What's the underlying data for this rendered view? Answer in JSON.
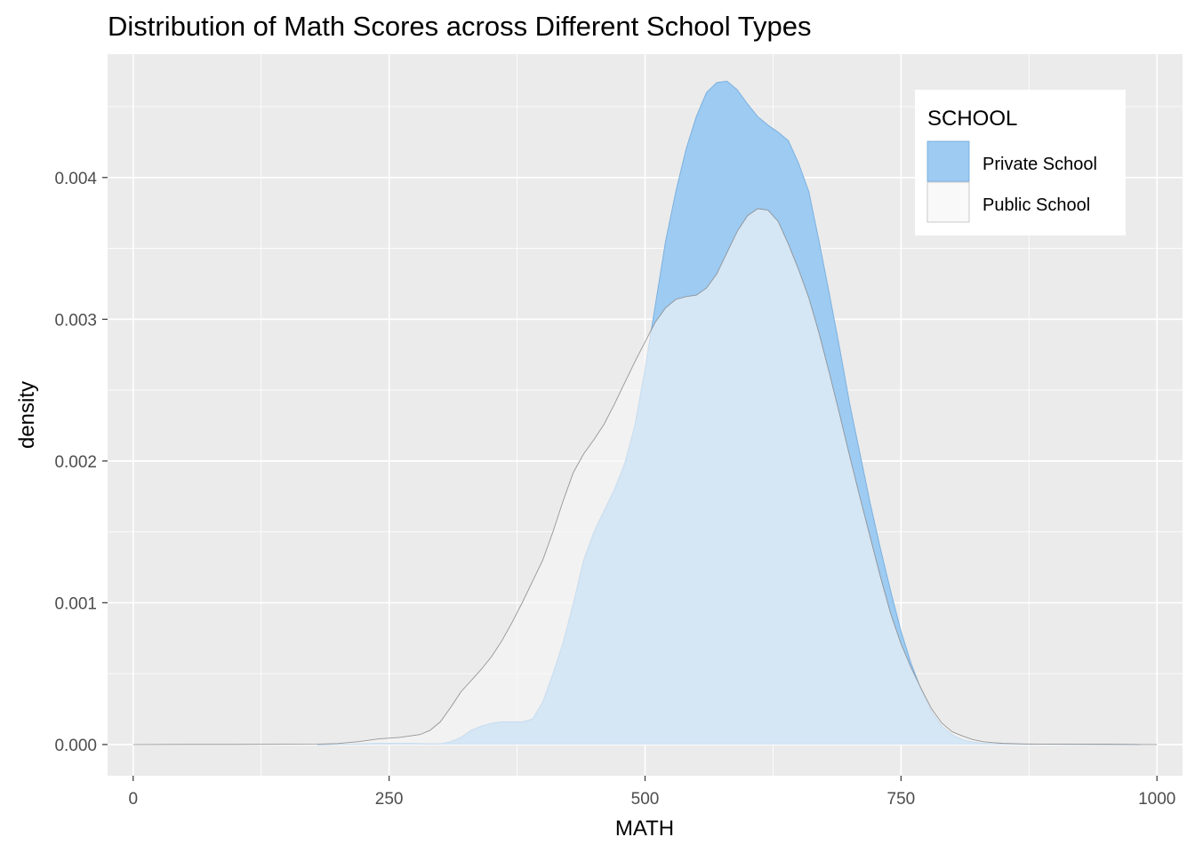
{
  "chart_data": {
    "type": "area",
    "title": "Distribution of Math Scores across Different School Types",
    "xlabel": "MATH",
    "ylabel": "density",
    "xlim": [
      -25,
      1025
    ],
    "ylim": [
      -0.00022,
      0.00487
    ],
    "x_ticks": [
      0,
      250,
      500,
      750,
      1000
    ],
    "x_tick_labels": [
      "0",
      "250",
      "500",
      "750",
      "1000"
    ],
    "y_ticks": [
      0,
      0.001,
      0.002,
      0.003,
      0.004
    ],
    "y_tick_labels": [
      "0.000",
      "0.001",
      "0.002",
      "0.003",
      "0.004"
    ],
    "grid": true,
    "legend": {
      "title": "SCHOOL",
      "position": "top-right",
      "entries": [
        "Private School",
        "Public School"
      ]
    },
    "series": [
      {
        "name": "Private School",
        "color": "#9DCBF2",
        "outline": "#6FA8DC",
        "opacity": 1,
        "points": [
          [
            180,
            0
          ],
          [
            210,
            3e-06
          ],
          [
            240,
            8e-06
          ],
          [
            270,
            8e-06
          ],
          [
            290,
            5e-06
          ],
          [
            300,
            5e-06
          ],
          [
            310,
            2e-05
          ],
          [
            320,
            5e-05
          ],
          [
            330,
            0.0001
          ],
          [
            340,
            0.00013
          ],
          [
            350,
            0.00015
          ],
          [
            360,
            0.00016
          ],
          [
            370,
            0.00016
          ],
          [
            380,
            0.00016
          ],
          [
            390,
            0.00018
          ],
          [
            400,
            0.0003
          ],
          [
            410,
            0.0005
          ],
          [
            420,
            0.00072
          ],
          [
            430,
            0.001
          ],
          [
            440,
            0.0013
          ],
          [
            450,
            0.0015
          ],
          [
            460,
            0.00165
          ],
          [
            470,
            0.0018
          ],
          [
            480,
            0.00198
          ],
          [
            490,
            0.00225
          ],
          [
            500,
            0.00265
          ],
          [
            510,
            0.0031
          ],
          [
            520,
            0.00355
          ],
          [
            530,
            0.0039
          ],
          [
            540,
            0.0042
          ],
          [
            550,
            0.00443
          ],
          [
            560,
            0.0046
          ],
          [
            570,
            0.00467
          ],
          [
            580,
            0.00468
          ],
          [
            590,
            0.00462
          ],
          [
            600,
            0.00452
          ],
          [
            610,
            0.00443
          ],
          [
            620,
            0.00437
          ],
          [
            630,
            0.00432
          ],
          [
            640,
            0.00426
          ],
          [
            650,
            0.0041
          ],
          [
            660,
            0.0039
          ],
          [
            670,
            0.00355
          ],
          [
            680,
            0.00318
          ],
          [
            690,
            0.0028
          ],
          [
            700,
            0.0024
          ],
          [
            710,
            0.00205
          ],
          [
            720,
            0.0017
          ],
          [
            730,
            0.00138
          ],
          [
            740,
            0.00108
          ],
          [
            750,
            0.0008
          ],
          [
            760,
            0.00057
          ],
          [
            770,
            0.00038
          ],
          [
            780,
            0.00023
          ],
          [
            790,
            0.00013
          ],
          [
            800,
            7e-05
          ],
          [
            810,
            3.5e-05
          ],
          [
            820,
            1.8e-05
          ],
          [
            830,
            1e-05
          ],
          [
            840,
            6e-06
          ],
          [
            860,
            4e-06
          ],
          [
            880,
            2e-06
          ],
          [
            900,
            2e-06
          ],
          [
            920,
            2e-06
          ],
          [
            950,
            2e-06
          ],
          [
            983,
            0
          ]
        ]
      },
      {
        "name": "Public School",
        "color": "#F7F7F7",
        "outline": "#8C8C8C",
        "opacity": 0.62,
        "points": [
          [
            0,
            0
          ],
          [
            50,
            1e-06
          ],
          [
            100,
            1e-06
          ],
          [
            150,
            2e-06
          ],
          [
            180,
            3e-06
          ],
          [
            200,
            7e-06
          ],
          [
            220,
            2e-05
          ],
          [
            240,
            4e-05
          ],
          [
            260,
            5e-05
          ],
          [
            280,
            7e-05
          ],
          [
            290,
            0.0001
          ],
          [
            300,
            0.00016
          ],
          [
            310,
            0.00026
          ],
          [
            320,
            0.00037
          ],
          [
            330,
            0.00045
          ],
          [
            340,
            0.00053
          ],
          [
            350,
            0.00062
          ],
          [
            360,
            0.00073
          ],
          [
            370,
            0.00086
          ],
          [
            380,
            0.001
          ],
          [
            390,
            0.00115
          ],
          [
            400,
            0.0013
          ],
          [
            410,
            0.0015
          ],
          [
            420,
            0.00172
          ],
          [
            430,
            0.00192
          ],
          [
            440,
            0.00205
          ],
          [
            450,
            0.00215
          ],
          [
            460,
            0.00226
          ],
          [
            470,
            0.0024
          ],
          [
            480,
            0.00255
          ],
          [
            490,
            0.0027
          ],
          [
            500,
            0.00284
          ],
          [
            510,
            0.00298
          ],
          [
            520,
            0.00308
          ],
          [
            530,
            0.00314
          ],
          [
            540,
            0.00316
          ],
          [
            550,
            0.00317
          ],
          [
            560,
            0.00322
          ],
          [
            570,
            0.00332
          ],
          [
            580,
            0.00347
          ],
          [
            590,
            0.00362
          ],
          [
            600,
            0.00373
          ],
          [
            610,
            0.00378
          ],
          [
            620,
            0.00377
          ],
          [
            630,
            0.00369
          ],
          [
            640,
            0.00353
          ],
          [
            650,
            0.00335
          ],
          [
            660,
            0.00315
          ],
          [
            670,
            0.0029
          ],
          [
            680,
            0.00262
          ],
          [
            690,
            0.00233
          ],
          [
            700,
            0.00203
          ],
          [
            710,
            0.00174
          ],
          [
            720,
            0.00146
          ],
          [
            730,
            0.00118
          ],
          [
            740,
            0.00092
          ],
          [
            750,
            0.00071
          ],
          [
            760,
            0.00054
          ],
          [
            770,
            0.00039
          ],
          [
            780,
            0.00025
          ],
          [
            790,
            0.00015
          ],
          [
            800,
            9e-05
          ],
          [
            810,
            6e-05
          ],
          [
            820,
            3.5e-05
          ],
          [
            830,
            2e-05
          ],
          [
            840,
            1.3e-05
          ],
          [
            850,
            8e-06
          ],
          [
            870,
            4e-06
          ],
          [
            900,
            2e-06
          ],
          [
            950,
            1e-06
          ],
          [
            1000,
            0
          ]
        ]
      }
    ]
  }
}
